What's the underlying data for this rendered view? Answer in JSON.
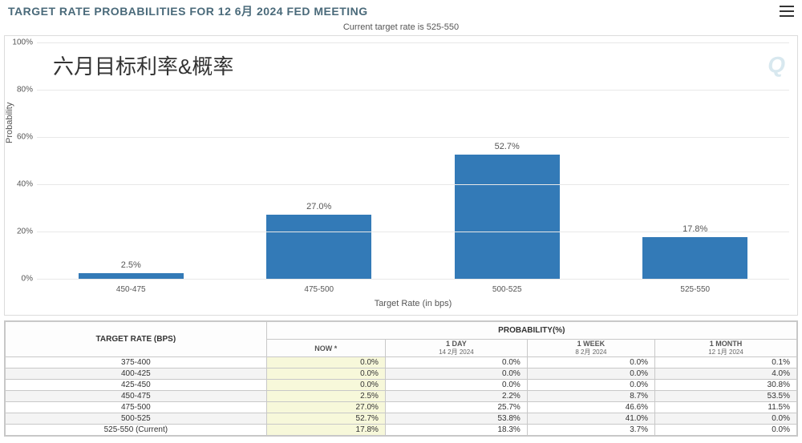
{
  "header": {
    "title": "TARGET RATE PROBABILITIES FOR 12 6月 2024 FED MEETING",
    "subtitle": "Current target rate is 525-550"
  },
  "overlay_text": "六月目标利率&概率",
  "watermark": "Q",
  "chart": {
    "type": "bar",
    "ylabel": "Probability",
    "xlabel": "Target Rate (in bps)",
    "ylim": [
      0,
      100
    ],
    "ytick_step": 20,
    "bar_color": "#337ab7",
    "grid_color": "#e8e8e8",
    "background_color": "#ffffff",
    "label_fontsize": 11,
    "title_fontsize": 14,
    "bar_width": 0.7,
    "categories": [
      "450-475",
      "475-500",
      "500-525",
      "525-550"
    ],
    "values": [
      2.5,
      27.0,
      52.7,
      17.8
    ],
    "value_labels": [
      "2.5%",
      "27.0%",
      "52.7%",
      "17.8%"
    ]
  },
  "table": {
    "header_rate": "TARGET RATE (BPS)",
    "header_prob": "PROBABILITY(%)",
    "columns": [
      {
        "label": "NOW",
        "sublabel": "*"
      },
      {
        "label": "1 DAY",
        "sublabel": "14 2月 2024"
      },
      {
        "label": "1 WEEK",
        "sublabel": "8 2月 2024"
      },
      {
        "label": "1 MONTH",
        "sublabel": "12 1月 2024"
      }
    ],
    "rows": [
      {
        "rate": "375-400",
        "vals": [
          "0.0%",
          "0.0%",
          "0.0%",
          "0.1%"
        ]
      },
      {
        "rate": "400-425",
        "vals": [
          "0.0%",
          "0.0%",
          "0.0%",
          "4.0%"
        ]
      },
      {
        "rate": "425-450",
        "vals": [
          "0.0%",
          "0.0%",
          "0.0%",
          "30.8%"
        ]
      },
      {
        "rate": "450-475",
        "vals": [
          "2.5%",
          "2.2%",
          "8.7%",
          "53.5%"
        ]
      },
      {
        "rate": "475-500",
        "vals": [
          "27.0%",
          "25.7%",
          "46.6%",
          "11.5%"
        ]
      },
      {
        "rate": "500-525",
        "vals": [
          "52.7%",
          "53.8%",
          "41.0%",
          "0.0%"
        ]
      },
      {
        "rate": "525-550 (Current)",
        "vals": [
          "17.8%",
          "18.3%",
          "3.7%",
          "0.0%"
        ]
      }
    ]
  }
}
